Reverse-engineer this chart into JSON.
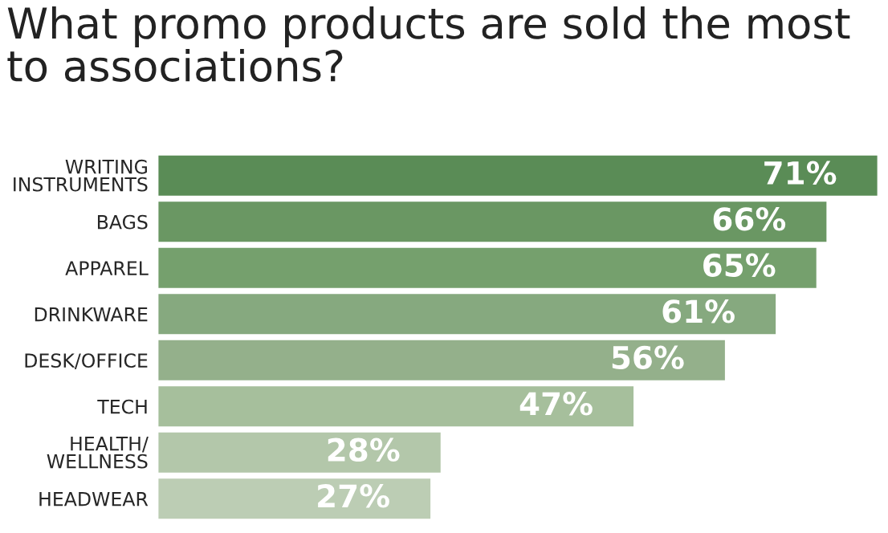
{
  "chart_data": {
    "type": "bar",
    "orientation": "horizontal",
    "title": "What promo products are sold the most\nto associations?",
    "categories": [
      "WRITING\nINSTRUMENTS",
      "BAGS",
      "APPAREL",
      "DRINKWARE",
      "DESK/OFFICE",
      "TECH",
      "HEALTH/\nWELLNESS",
      "HEADWEAR"
    ],
    "values": [
      71,
      66,
      65,
      61,
      56,
      47,
      28,
      27
    ],
    "value_labels": [
      "71%",
      "66%",
      "65%",
      "61%",
      "56%",
      "47%",
      "28%",
      "27%"
    ],
    "colors": [
      "#5a8c56",
      "#6a9763",
      "#75a06d",
      "#86a97f",
      "#94b08b",
      "#a6bf9c",
      "#b3c7aa",
      "#bccdb4"
    ]
  }
}
